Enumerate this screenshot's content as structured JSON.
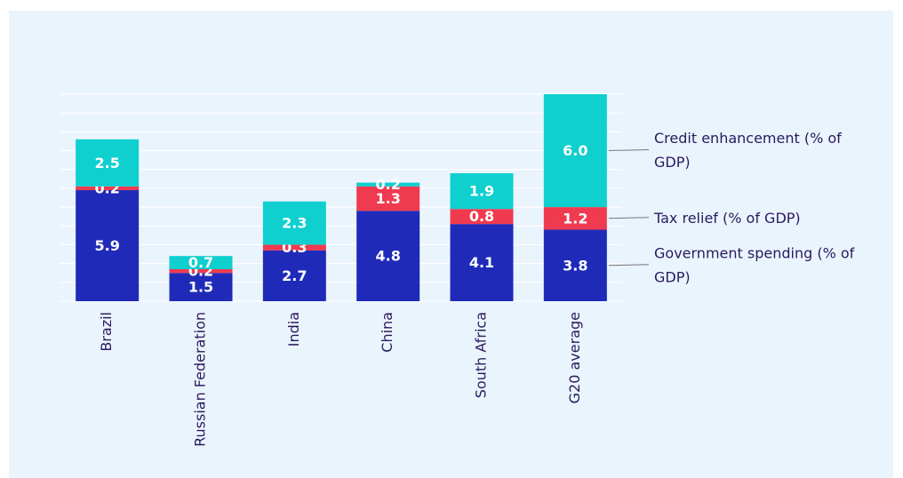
{
  "chart_data": {
    "type": "stacked_bar",
    "categories": [
      "Brazil",
      "Russian Federation",
      "India",
      "China",
      "South Africa",
      "G20 average"
    ],
    "series": [
      {
        "name": "Government spending (% of GDP)",
        "color": "#1f2bb8",
        "values": [
          5.9,
          1.5,
          2.7,
          4.8,
          4.1,
          3.8
        ]
      },
      {
        "name": "Tax relief (% of GDP)",
        "color": "#f03a4f",
        "values": [
          0.2,
          0.2,
          0.3,
          1.3,
          0.8,
          1.2
        ]
      },
      {
        "name": "Credit enhancement (% of GDP)",
        "color": "#0fcfcf",
        "values": [
          2.5,
          0.7,
          2.3,
          0.2,
          1.9,
          6
        ],
        "value_labels": [
          "2.5",
          "0.7",
          "2.3",
          "0.2",
          "1.9",
          "6.0"
        ]
      }
    ],
    "ylim": [
      0,
      11
    ],
    "yticks": [
      0,
      1,
      2,
      3,
      4,
      5,
      6,
      7,
      8,
      9,
      10,
      11
    ],
    "grid": true
  }
}
